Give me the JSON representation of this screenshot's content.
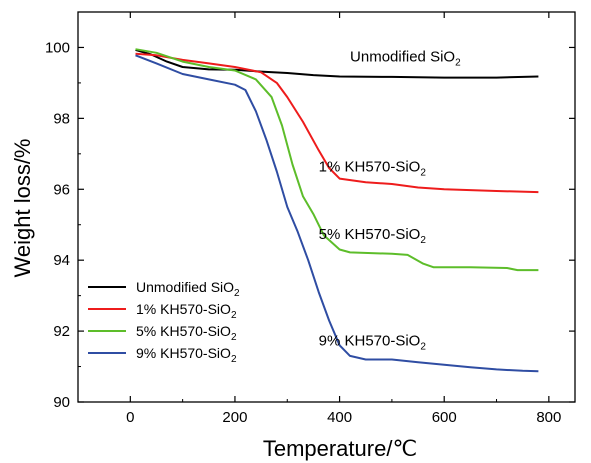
{
  "chart_data": {
    "type": "line",
    "title": "",
    "xlabel": "Temperature/℃",
    "ylabel": "Weight loss/%",
    "xlim": [
      -100,
      850
    ],
    "ylim": [
      90,
      101
    ],
    "xticks": [
      0,
      200,
      400,
      600,
      800
    ],
    "yticks": [
      90,
      92,
      94,
      96,
      98,
      100
    ],
    "grid": false,
    "legend_position": "bottom-left",
    "series": [
      {
        "name": "Unmodified SiO₂",
        "name_main": "Unmodified SiO",
        "name_sub": "2",
        "color": "#000000",
        "points": [
          [
            10,
            99.93
          ],
          [
            40,
            99.8
          ],
          [
            70,
            99.6
          ],
          [
            100,
            99.45
          ],
          [
            150,
            99.38
          ],
          [
            200,
            99.37
          ],
          [
            250,
            99.32
          ],
          [
            300,
            99.28
          ],
          [
            350,
            99.22
          ],
          [
            400,
            99.18
          ],
          [
            500,
            99.17
          ],
          [
            600,
            99.15
          ],
          [
            700,
            99.15
          ],
          [
            780,
            99.18
          ]
        ]
      },
      {
        "name": "1% KH570-SiO₂",
        "name_main": "1% KH570-SiO",
        "name_sub": "2",
        "color": "#ee1c1c",
        "points": [
          [
            10,
            99.82
          ],
          [
            50,
            99.78
          ],
          [
            100,
            99.65
          ],
          [
            150,
            99.55
          ],
          [
            200,
            99.45
          ],
          [
            250,
            99.3
          ],
          [
            280,
            99.0
          ],
          [
            300,
            98.6
          ],
          [
            330,
            97.9
          ],
          [
            360,
            97.1
          ],
          [
            380,
            96.6
          ],
          [
            400,
            96.3
          ],
          [
            450,
            96.2
          ],
          [
            500,
            96.15
          ],
          [
            550,
            96.05
          ],
          [
            600,
            96.0
          ],
          [
            700,
            95.95
          ],
          [
            780,
            95.92
          ]
        ]
      },
      {
        "name": "5% KH570-SiO₂",
        "name_main": "5% KH570-SiO",
        "name_sub": "2",
        "color": "#5dbd2a",
        "points": [
          [
            10,
            99.95
          ],
          [
            50,
            99.85
          ],
          [
            100,
            99.6
          ],
          [
            150,
            99.45
          ],
          [
            200,
            99.35
          ],
          [
            240,
            99.1
          ],
          [
            270,
            98.6
          ],
          [
            290,
            97.8
          ],
          [
            310,
            96.7
          ],
          [
            330,
            95.8
          ],
          [
            350,
            95.3
          ],
          [
            370,
            94.7
          ],
          [
            400,
            94.3
          ],
          [
            420,
            94.22
          ],
          [
            500,
            94.18
          ],
          [
            530,
            94.15
          ],
          [
            560,
            93.9
          ],
          [
            580,
            93.8
          ],
          [
            650,
            93.8
          ],
          [
            720,
            93.78
          ],
          [
            740,
            93.72
          ],
          [
            780,
            93.72
          ]
        ]
      },
      {
        "name": "9% KH570-SiO₂",
        "name_main": "9% KH570-SiO",
        "name_sub": "2",
        "color": "#2f4da3",
        "points": [
          [
            10,
            99.78
          ],
          [
            50,
            99.55
          ],
          [
            100,
            99.25
          ],
          [
            150,
            99.1
          ],
          [
            200,
            98.95
          ],
          [
            220,
            98.8
          ],
          [
            240,
            98.2
          ],
          [
            260,
            97.4
          ],
          [
            280,
            96.5
          ],
          [
            300,
            95.5
          ],
          [
            320,
            94.8
          ],
          [
            340,
            94.0
          ],
          [
            360,
            93.1
          ],
          [
            380,
            92.3
          ],
          [
            400,
            91.6
          ],
          [
            420,
            91.3
          ],
          [
            450,
            91.2
          ],
          [
            500,
            91.2
          ],
          [
            550,
            91.12
          ],
          [
            600,
            91.05
          ],
          [
            650,
            90.98
          ],
          [
            700,
            90.92
          ],
          [
            750,
            90.88
          ],
          [
            780,
            90.87
          ]
        ]
      }
    ],
    "annotations": [
      {
        "main": "Unmodified SiO",
        "sub": "2",
        "x": 420,
        "y": 99.6
      },
      {
        "main": "1% KH570-SiO",
        "sub": "2",
        "x": 360,
        "y": 96.5
      },
      {
        "main": "5% KH570-SiO",
        "sub": "2",
        "x": 360,
        "y": 94.6
      },
      {
        "main": "9% KH570-SiO",
        "sub": "2",
        "x": 360,
        "y": 91.6
      }
    ]
  }
}
